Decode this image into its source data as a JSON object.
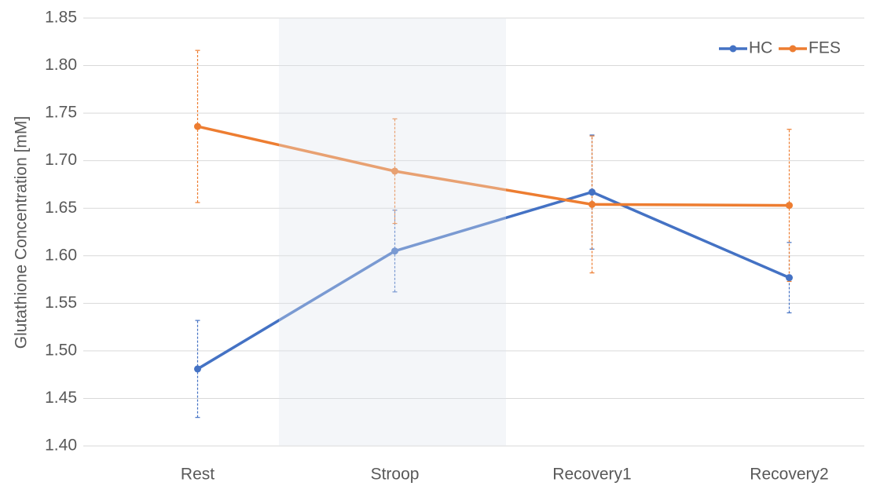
{
  "chart_data": {
    "type": "line",
    "y_label": "Glutathione Concentration [mM]",
    "categories": [
      "Rest",
      "Stroop",
      "Recovery1",
      "Recovery2"
    ],
    "series": [
      {
        "name": "HC",
        "color": "#4472c4",
        "values": [
          1.481,
          1.605,
          1.667,
          1.577
        ],
        "errors": [
          0.051,
          0.043,
          0.06,
          0.037
        ]
      },
      {
        "name": "FES",
        "color": "#ed7d31",
        "values": [
          1.736,
          1.689,
          1.654,
          1.653
        ],
        "errors": [
          0.08,
          0.055,
          0.072,
          0.08
        ]
      }
    ],
    "ylim": [
      1.4,
      1.85
    ],
    "yticks": [
      {
        "value": 1.4,
        "label": "1.40"
      },
      1.45,
      {
        "value": 1.5,
        "label": "1.50"
      },
      1.55,
      {
        "value": 1.6,
        "label": "1.60"
      },
      1.65,
      {
        "value": 1.7,
        "label": "1.70"
      },
      1.75,
      {
        "value": 1.8,
        "label": "1.80"
      },
      1.85
    ],
    "grid": true,
    "legend": "upper right"
  }
}
